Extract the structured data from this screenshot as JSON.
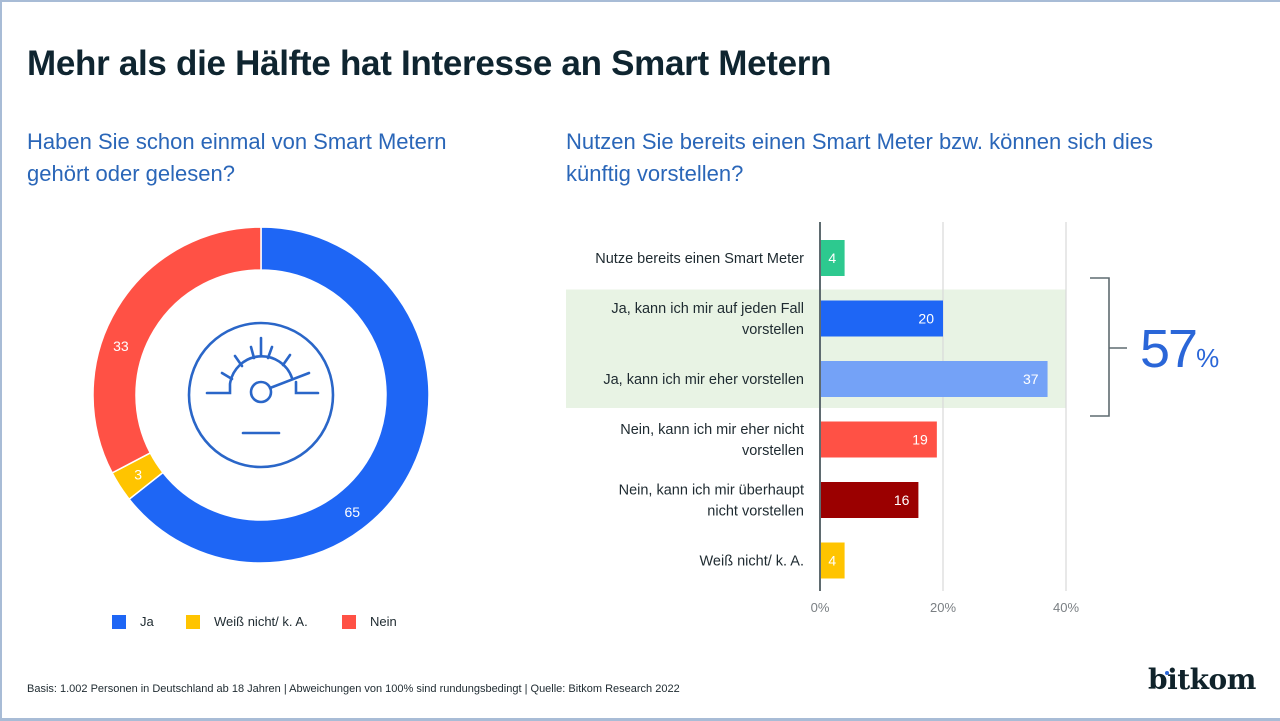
{
  "title": "Mehr als die Hälfte hat Interesse an Smart Metern",
  "footer": "Basis: 1.002 Personen in Deutschland ab 18 Jahren | Abweichungen von 100% sind rundungsbedingt | Quelle: Bitkom Research 2022",
  "logo": "bitkom",
  "icon": "gauge-meter-icon",
  "chart_data": [
    {
      "type": "pie",
      "variant": "donut",
      "title": "Haben Sie schon einmal von Smart Metern gehört oder gelesen?",
      "categories": [
        "Ja",
        "Weiß nicht/ k. A.",
        "Nein"
      ],
      "values": [
        65,
        3,
        33
      ],
      "colors": [
        "#1e66f5",
        "#ffc400",
        "#ff5145"
      ],
      "legend_position": "bottom"
    },
    {
      "type": "bar",
      "orientation": "horizontal",
      "title": "Nutzen Sie bereits einen Smart Meter bzw. können sich dies künftig vorstellen?",
      "categories": [
        "Nutze bereits einen Smart Meter",
        "Ja, kann ich mir auf jeden Fall vorstellen",
        "Ja, kann ich mir eher vorstellen",
        "Nein, kann ich mir eher nicht vorstellen",
        "Nein, kann ich mir überhaupt nicht vorstellen",
        "Weiß nicht/ k. A."
      ],
      "label_lines": [
        [
          "Nutze bereits einen Smart Meter"
        ],
        [
          "Ja, kann ich mir auf jeden Fall",
          "vorstellen"
        ],
        [
          "Ja, kann ich mir eher vorstellen"
        ],
        [
          "Nein, kann ich mir eher nicht",
          "vorstellen"
        ],
        [
          "Nein, kann ich mir überhaupt",
          "nicht vorstellen"
        ],
        [
          "Weiß nicht/ k. A."
        ]
      ],
      "values": [
        4,
        20,
        37,
        19,
        16,
        4
      ],
      "colors": [
        "#2dc98f",
        "#1e66f5",
        "#74a2f7",
        "#ff5145",
        "#9b0000",
        "#ffc400"
      ],
      "xlim": [
        0,
        40
      ],
      "xticks": [
        0,
        20,
        40
      ],
      "xtick_labels": [
        "0%",
        "20%",
        "40%"
      ],
      "grid": true,
      "highlight": {
        "rows": [
          1,
          2
        ],
        "total_value": "57",
        "total_unit": "%",
        "color": "#e8f3e4"
      }
    }
  ]
}
